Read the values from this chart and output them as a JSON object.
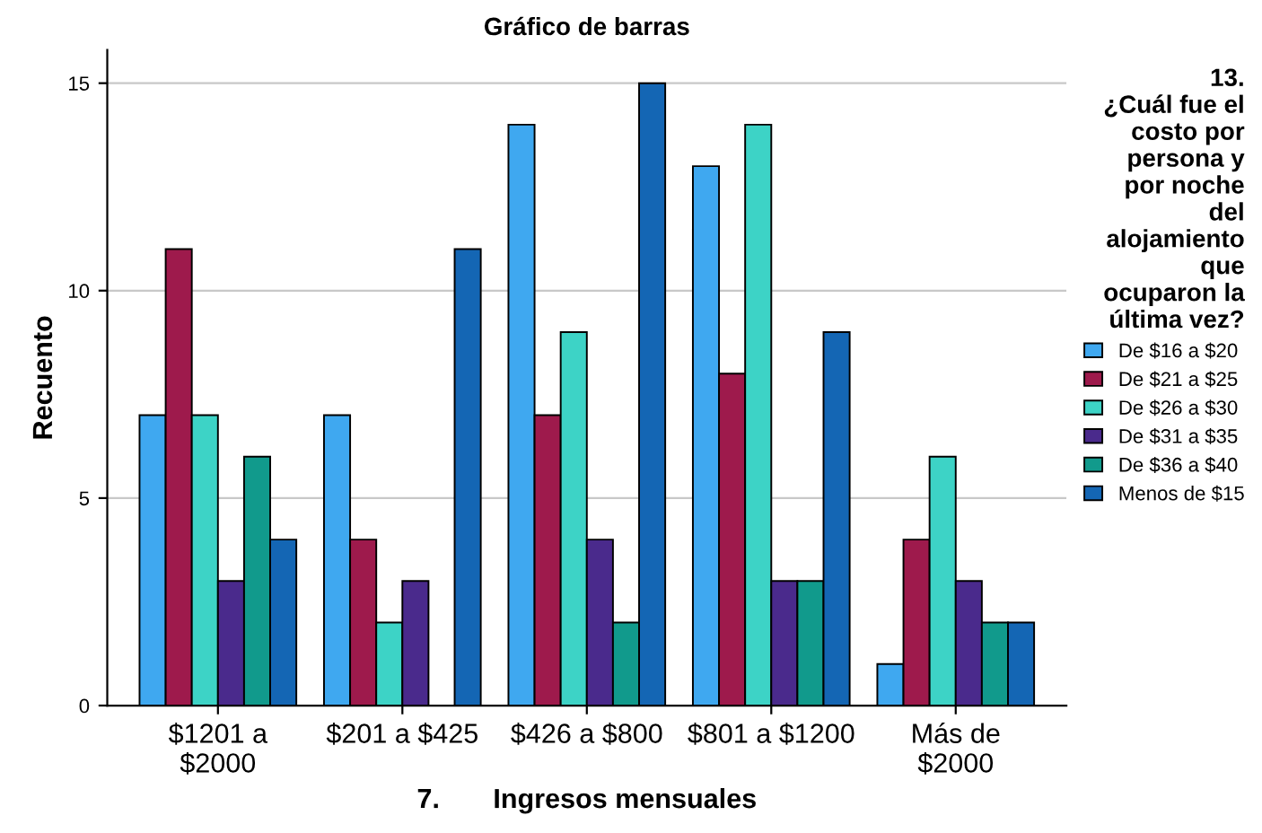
{
  "chart_data": {
    "type": "bar",
    "title": "Gráfico de barras",
    "xlabel": "7.       Ingresos mensuales",
    "ylabel": "Recuento",
    "legend_title": "13.\n¿Cuál fue el\ncosto por\npersona y\npor noche\ndel\nalojamiento\nque\nocuparon la\núltima vez?",
    "categories": [
      "$1201 a\n$2000",
      "$201 a $425",
      "$426 a $800",
      "$801 a $1200",
      "Más de\n$2000"
    ],
    "series": [
      {
        "name": "De $16 a $20",
        "color": "#3fa8f0",
        "values": [
          7,
          7,
          14,
          13,
          1
        ]
      },
      {
        "name": "De $21 a $25",
        "color": "#9e1a4c",
        "values": [
          11,
          4,
          7,
          8,
          4
        ]
      },
      {
        "name": "De $26 a $30",
        "color": "#3dd3c6",
        "values": [
          7,
          2,
          9,
          14,
          6
        ]
      },
      {
        "name": "De $31 a $35",
        "color": "#4a2a8c",
        "values": [
          3,
          3,
          4,
          3,
          3
        ]
      },
      {
        "name": "De $36 a $40",
        "color": "#119a8c",
        "values": [
          6,
          null,
          2,
          3,
          2
        ]
      },
      {
        "name": "Menos de $15",
        "color": "#1466b4",
        "values": [
          4,
          11,
          15,
          9,
          2
        ]
      }
    ],
    "ylim": [
      0,
      15.8
    ],
    "yticks": [
      0,
      5,
      10,
      15
    ],
    "grid": "y",
    "legend": "right"
  }
}
